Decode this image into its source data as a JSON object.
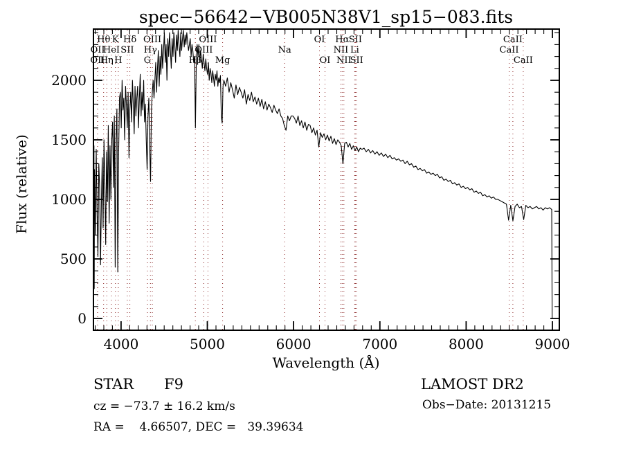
{
  "title": "spec−56642−VB005N38V1_sp15−083.fits",
  "footer": {
    "left": {
      "class": "STAR",
      "subclass": "F9",
      "cz": "cz = −73.7 ± 16.2 km/s",
      "radec": "RA =    4.66507, DEC =   39.39634"
    },
    "right": {
      "survey": "LAMOST DR2",
      "obs_date": "Obs−Date: 20131215"
    }
  },
  "colors": {
    "spectrum": "#000000",
    "line_marker": "#8B2323",
    "axis": "#000000",
    "background": "#ffffff"
  },
  "chart_data": {
    "type": "line",
    "title": "spec−56642−VB005N38V1_sp15−083.fits",
    "xlabel": "Wavelength (Å)",
    "ylabel": "Flux (relative)",
    "xlim": [
      3680,
      9080
    ],
    "ylim": [
      -99,
      2430
    ],
    "xticks": [
      4000,
      5000,
      6000,
      7000,
      8000,
      9000
    ],
    "yticks": [
      0,
      500,
      1000,
      1500,
      2000
    ],
    "x_minor_step": 100,
    "y_minor_step": 100,
    "grid": false,
    "legend": "none",
    "spectral_lines": [
      {
        "label": "OII",
        "wavelength": 3727,
        "row": 3
      },
      {
        "label": "OII",
        "wavelength": 3729,
        "row": 2
      },
      {
        "label": "Hθ",
        "wavelength": 3798,
        "row": 1
      },
      {
        "label": "Hη",
        "wavelength": 3835,
        "row": 3
      },
      {
        "label": "HeI",
        "wavelength": 3889,
        "row": 2
      },
      {
        "label": "K",
        "wavelength": 3934,
        "row": 1
      },
      {
        "label": "H",
        "wavelength": 3968,
        "row": 3
      },
      {
        "label": "SII",
        "wavelength": 4072,
        "row": 2
      },
      {
        "label": "Hδ",
        "wavelength": 4102,
        "row": 1
      },
      {
        "label": "G",
        "wavelength": 4306,
        "row": 3
      },
      {
        "label": "Hγ",
        "wavelength": 4340,
        "row": 2
      },
      {
        "label": "OIII",
        "wavelength": 4363,
        "row": 1
      },
      {
        "label": "Hβ",
        "wavelength": 4861,
        "row": 3
      },
      {
        "label": "OIII",
        "wavelength": 4959,
        "row": 2
      },
      {
        "label": "OIII",
        "wavelength": 5007,
        "row": 1
      },
      {
        "label": "Mg",
        "wavelength": 5177,
        "row": 3
      },
      {
        "label": "Na",
        "wavelength": 5896,
        "row": 2
      },
      {
        "label": "OI",
        "wavelength": 6300,
        "row": 1
      },
      {
        "label": "OI",
        "wavelength": 6364,
        "row": 3
      },
      {
        "label": "NII",
        "wavelength": 6548,
        "row": 2
      },
      {
        "label": "Hα",
        "wavelength": 6563,
        "row": 1
      },
      {
        "label": "NII",
        "wavelength": 6583,
        "row": 3
      },
      {
        "label": "Li",
        "wavelength": 6708,
        "row": 2
      },
      {
        "label": "SII",
        "wavelength": 6716,
        "row": 1
      },
      {
        "label": "SII",
        "wavelength": 6731,
        "row": 3
      },
      {
        "label": "CaII",
        "wavelength": 8498,
        "row": 2
      },
      {
        "label": "CaII",
        "wavelength": 8542,
        "row": 1
      },
      {
        "label": "CaII",
        "wavelength": 8662,
        "row": 3
      }
    ],
    "series": [
      {
        "name": "flux",
        "segments": [
          {
            "start": 3680,
            "step": 3,
            "flux": [
              2100,
              950,
              1450,
              250
            ]
          },
          {
            "start": 3692,
            "step": 10,
            "flux": [
              1250,
              700,
              1420,
              900,
              520,
              1300,
              1100,
              450,
              980,
              1350,
              760,
              1500,
              1150,
              620,
              1400,
              980,
              1620,
              800,
              1450,
              1000,
              1500,
              1650,
              1100,
              1700,
              430,
              1500,
              1760,
              390,
              1400,
              1850,
              1900,
              1600,
              2000,
              1750,
              1850,
              1500,
              1950,
              1800,
              1600,
              1900,
              1350,
              1750,
              1900,
              1650,
              2000,
              1800,
              1550,
              1950,
              1700,
              1850,
              1950,
              1600,
              1850,
              2050,
              1700,
              1900,
              1750,
              2000,
              1650,
              1800,
              1500,
              1250,
              1700,
              1850,
              1450,
              1150,
              1750,
              1900,
              2000,
              1850
            ]
          },
          {
            "start": 4392,
            "step": 10,
            "flux": [
              2000,
              2150,
              1900,
              2100,
              2250,
              1950,
              2200,
              2050,
              2300,
              2100,
              2250,
              2400,
              2150,
              2300,
              2000,
              2350,
              2200,
              2400,
              2250,
              2100,
              2350,
              2200,
              2400,
              2300,
              2150,
              2380,
              2250,
              2420,
              2300,
              2200,
              2400,
              2250,
              2350,
              2420,
              2280,
              2380,
              2300,
              2400,
              2320,
              2250,
              2300,
              2350,
              2200,
              2300,
              2250,
              2150,
              2200,
              1600,
              2150,
              2300,
              2200,
              2300,
              2150,
              2250,
              2180,
              2100,
              2220,
              2150,
              2080,
              2180,
              2100,
              2050,
              2150,
              2000,
              2100,
              2060,
              1980,
              2080,
              2020,
              1950,
              2050,
              2000,
              2080,
              1950,
              2020,
              1980,
              2040,
              1700,
              1640,
              1950
            ]
          },
          {
            "start": 5192,
            "step": 20,
            "flux": [
              2000,
              1950,
              2020,
              1900,
              1980,
              1920,
              1850,
              1960,
              1880,
              1940,
              1900,
              1850,
              1920,
              1800,
              1880,
              1830,
              1900,
              1820,
              1860,
              1800,
              1850,
              1780,
              1840,
              1760,
              1820,
              1750,
              1800,
              1770,
              1730,
              1790,
              1750,
              1720,
              1760,
              1700,
              1680,
              1620,
              1580,
              1700,
              1660,
              1700,
              1700,
              1680,
              1640,
              1700,
              1620,
              1660,
              1600,
              1650,
              1580,
              1630,
              1620,
              1560,
              1600,
              1540,
              1580,
              1440,
              1560,
              1520,
              1550,
              1500,
              1540,
              1490,
              1530,
              1470,
              1510,
              1460,
              1500,
              1480,
              1450,
              1300,
              1470,
              1480,
              1440,
              1470,
              1420,
              1450,
              1410,
              1440,
              1400,
              1430
            ]
          },
          {
            "start": 6792,
            "step": 25,
            "flux": [
              1420,
              1430,
              1400,
              1420,
              1390,
              1410,
              1380,
              1400,
              1370,
              1390,
              1360,
              1380,
              1350,
              1370,
              1340,
              1350,
              1330,
              1340,
              1320,
              1330,
              1300,
              1320,
              1290,
              1300,
              1270,
              1280,
              1250,
              1260,
              1240,
              1250,
              1220,
              1230,
              1210,
              1220,
              1200,
              1210,
              1180,
              1190,
              1160,
              1170,
              1150,
              1160,
              1130,
              1140,
              1120,
              1130,
              1100,
              1110,
              1090,
              1100,
              1080,
              1090,
              1060,
              1070,
              1050,
              1060,
              1030,
              1040,
              1020,
              1030,
              1010,
              1020,
              1000,
              1000,
              990,
              980,
              970,
              960,
              825,
              950,
              820,
              940,
              960,
              930,
              940,
              830,
              950,
              930,
              940,
              920,
              930,
              940,
              920,
              930,
              910,
              930,
              920,
              930
            ]
          },
          {
            "start": 8992,
            "step": 5,
            "flux": [
              915,
              0
            ]
          }
        ]
      }
    ]
  }
}
